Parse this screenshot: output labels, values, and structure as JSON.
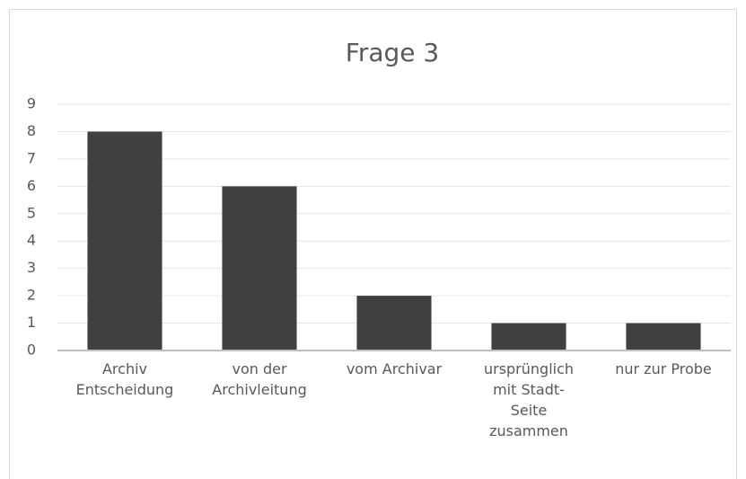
{
  "chart_data": {
    "type": "bar",
    "title": "Frage 3",
    "categories": [
      "Archiv\nEntscheidung",
      "von der\nArchivleitung",
      "vom Archivar",
      "ursprünglich\nmit Stadt-\nSeite\nzusammen",
      "nur zur Probe"
    ],
    "values": [
      8,
      6,
      2,
      1,
      1
    ],
    "color": "#404040",
    "ylim": [
      0,
      9
    ],
    "yticks": [
      0,
      1,
      2,
      3,
      4,
      5,
      6,
      7,
      8,
      9
    ],
    "grid": true
  }
}
